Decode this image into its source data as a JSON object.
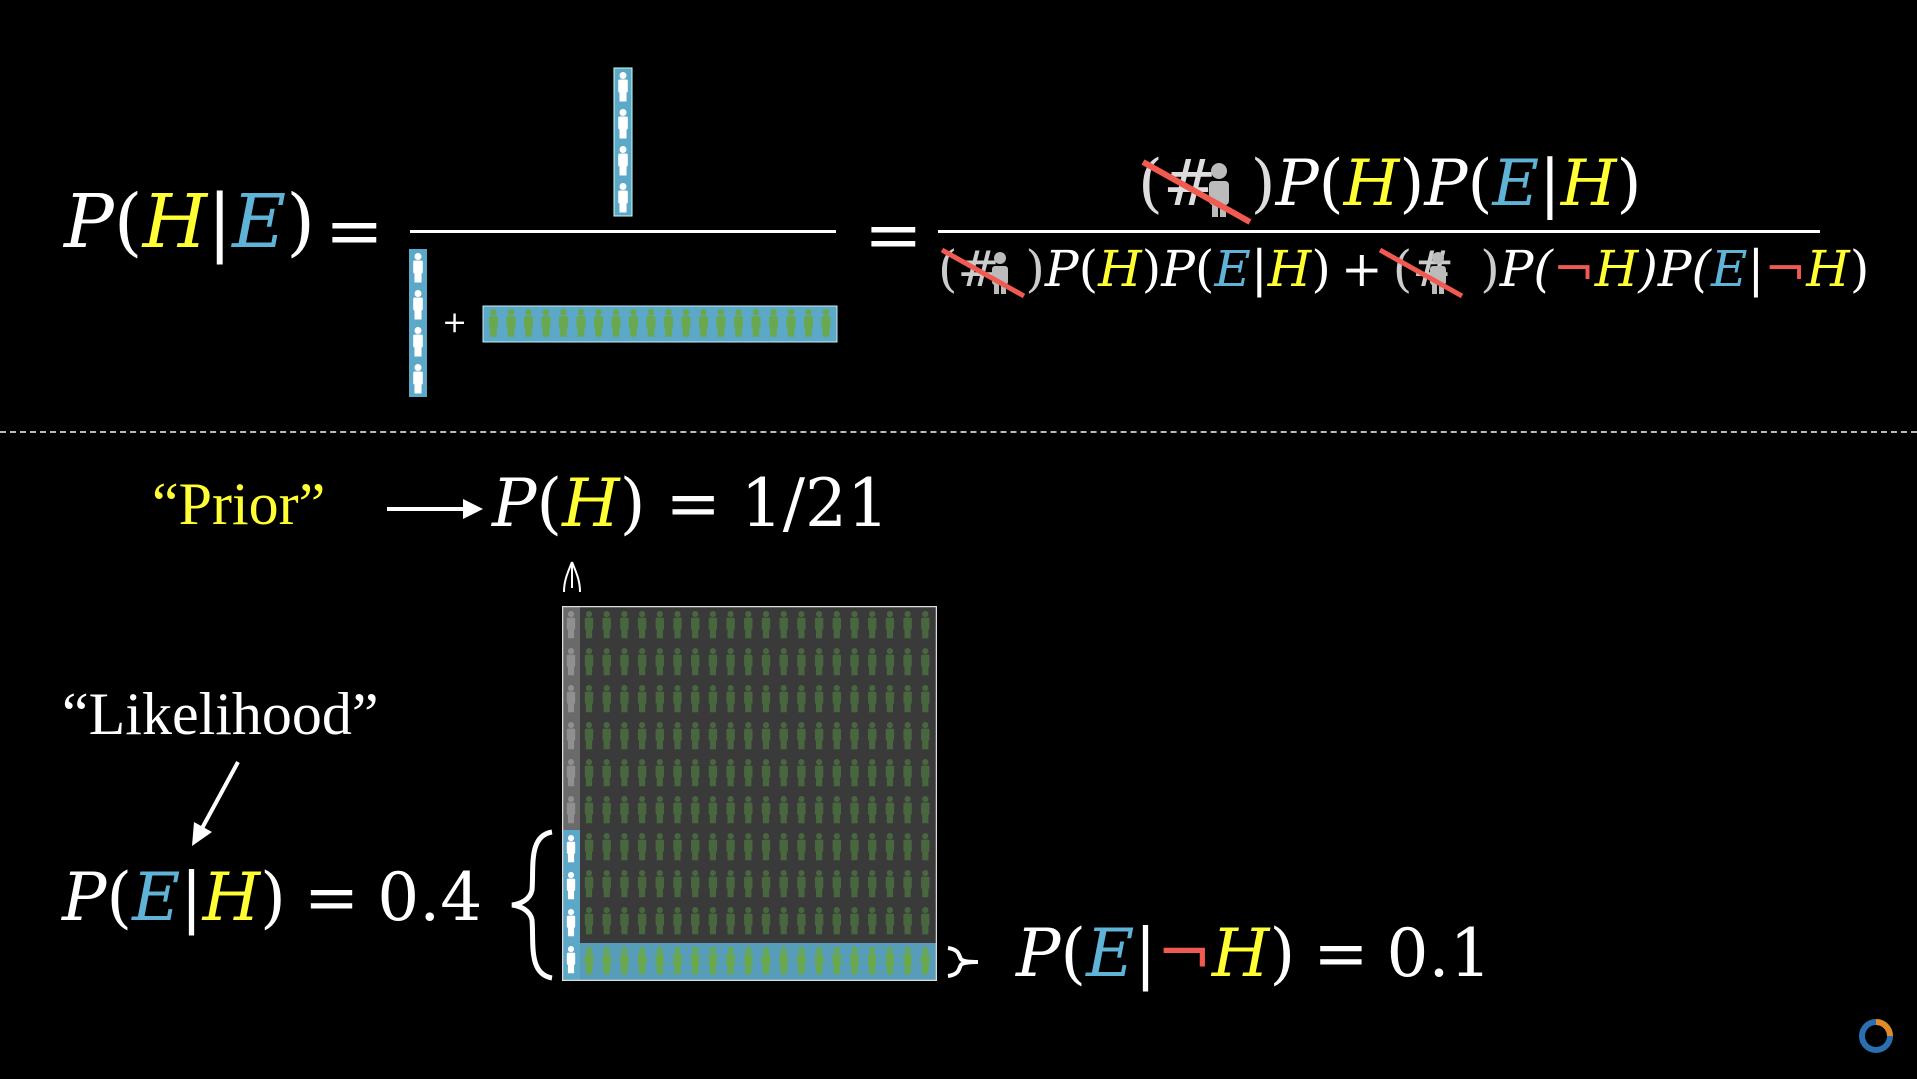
{
  "top_formula": {
    "lhs": {
      "P": "P",
      "open": "(",
      "H": "H",
      "bar": "|",
      "E": "E",
      "close": ")"
    },
    "equals1": "=",
    "plus_small": "+",
    "equals2": "=",
    "cancel_mark": "(#",
    "cancel_close": ")",
    "numerator": [
      "P",
      "(",
      "H",
      ")",
      "P",
      "(",
      "E",
      "|",
      "H",
      ")"
    ],
    "den_term1": [
      "P",
      "(",
      "H",
      ")",
      "P",
      "(",
      "E",
      "|",
      "H",
      ")"
    ],
    "den_plus": "+",
    "den_term2_a": "P(",
    "den_term2_not": "¬",
    "den_term2_H": "H",
    "den_term2_b": ")P(",
    "den_term2_E": "E",
    "den_term2_bar": "|",
    "den_term2_not2": "¬",
    "den_term2_H2": "H",
    "den_term2_c": ")"
  },
  "prior": {
    "label": "“Prior”",
    "P": "P",
    "open": "(",
    "H": "H",
    "close": ")",
    "equals": "=",
    "value": "1/21"
  },
  "likelihood": {
    "label": "“Likelihood”",
    "P": "P",
    "open": "(",
    "E": "E",
    "bar": "|",
    "H": "H",
    "close": ")",
    "equals": "=",
    "value": "0.4"
  },
  "not_likelihood": {
    "P": "P",
    "open": "(",
    "E": "E",
    "bar": "|",
    "not": "¬",
    "H": "H",
    "close": ")",
    "equals": "=",
    "value": "0.1"
  },
  "colors": {
    "hypothesis": "#ffff33",
    "evidence": "#5eb3d6",
    "negation": "#f05a50",
    "librarian_fill": "#5ba8c8",
    "farmer_fill": "#6aa84f",
    "background": "#000000"
  },
  "icons": [
    "person-icon",
    "arrow-right-icon",
    "arrow-down-left-icon",
    "cursor-icon",
    "loading-spinner-icon"
  ]
}
